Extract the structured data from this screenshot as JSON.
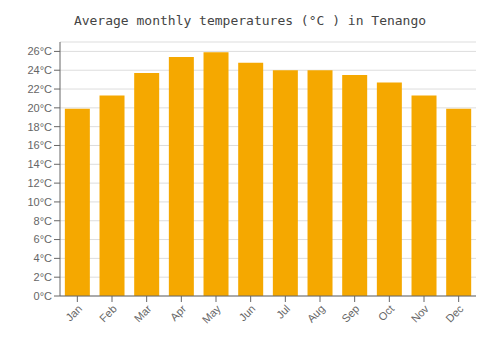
{
  "chart_data": {
    "type": "bar",
    "title": "Average monthly temperatures (°C ) in Tenango",
    "categories": [
      "Jan",
      "Feb",
      "Mar",
      "Apr",
      "May",
      "Jun",
      "Jul",
      "Aug",
      "Sep",
      "Oct",
      "Nov",
      "Dec"
    ],
    "values": [
      19.9,
      21.3,
      23.7,
      25.4,
      25.9,
      24.8,
      24.0,
      24.0,
      23.5,
      22.7,
      21.3,
      19.9
    ],
    "color": "#F5A800",
    "ylim": [
      0,
      27
    ],
    "yticks": [
      {
        "value": 0,
        "label": "0°C"
      },
      {
        "value": 2,
        "label": "2°C"
      },
      {
        "value": 4,
        "label": "4°C"
      },
      {
        "value": 6,
        "label": "6°C"
      },
      {
        "value": 8,
        "label": "8°C"
      },
      {
        "value": 10,
        "label": "10°C"
      },
      {
        "value": 12,
        "label": "12°C"
      },
      {
        "value": 14,
        "label": "14°C"
      },
      {
        "value": 16,
        "label": "16°C"
      },
      {
        "value": 18,
        "label": "18°C"
      },
      {
        "value": 20,
        "label": "20°C"
      },
      {
        "value": 22,
        "label": "22°C"
      },
      {
        "value": 24,
        "label": "24°C"
      },
      {
        "value": 26,
        "label": "26°C"
      }
    ],
    "grid": true
  }
}
